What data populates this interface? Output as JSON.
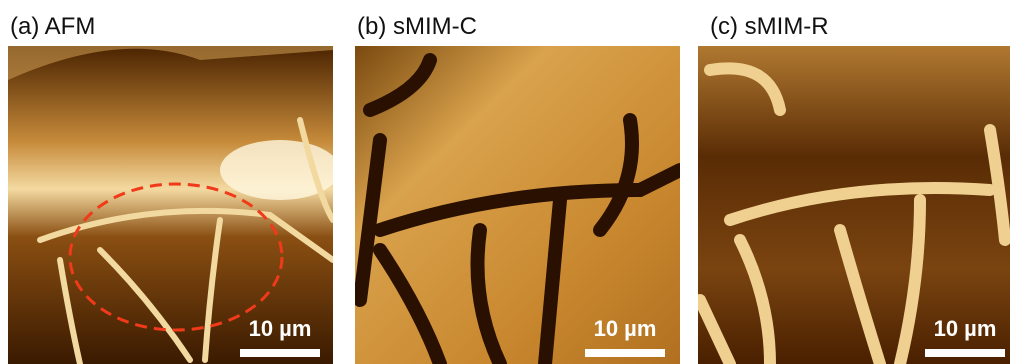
{
  "panels": [
    {
      "title": "(a) AFM",
      "scale_bar": "10 µm"
    },
    {
      "title": "(b) sMIM-C",
      "scale_bar": "10 µm"
    },
    {
      "title": "(c) sMIM-R",
      "scale_bar": "10 µm"
    }
  ]
}
